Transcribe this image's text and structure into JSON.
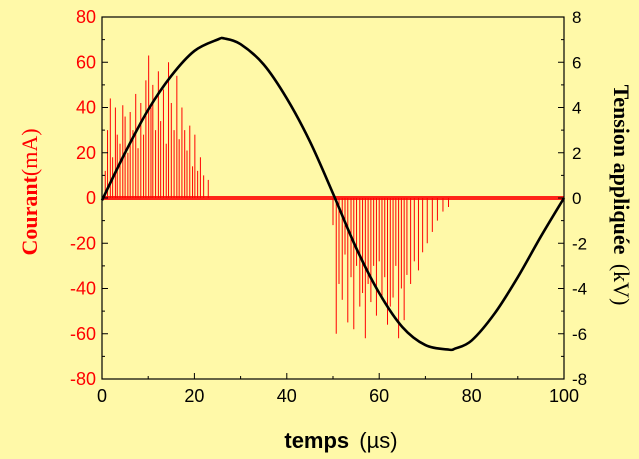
{
  "chart_data": {
    "type": "line",
    "xlabel_bold": "temps",
    "xlabel_unit": "(µs)",
    "ylabel_left_bold": "Courant",
    "ylabel_left_unit": "(mA)",
    "ylabel_right_bold": "Tension appliquée",
    "ylabel_right_unit": "(kV)",
    "xlim": [
      0,
      100
    ],
    "ylim_left": [
      -80,
      80
    ],
    "ylim_right": [
      -8,
      8
    ],
    "x_ticks": [
      "0",
      "20",
      "40",
      "60",
      "80",
      "100"
    ],
    "y_ticks_left": [
      "-80",
      "-60",
      "-40",
      "-20",
      "0",
      "20",
      "40",
      "60",
      "80"
    ],
    "y_ticks_right": [
      "-8",
      "-6",
      "-4",
      "-2",
      "0",
      "2",
      "4",
      "6",
      "8"
    ],
    "grid": false,
    "colors": {
      "background": "#fff9a8",
      "current": "#ff0000",
      "voltage": "#000000",
      "axes": "#000000"
    },
    "series": [
      {
        "axis": "right",
        "x": [
          0,
          5,
          10,
          15,
          20,
          25,
          26.5,
          30,
          35,
          40,
          45,
          50,
          55,
          60,
          65,
          70,
          75,
          76.5,
          80,
          85,
          90,
          95,
          100
        ],
        "y": [
          -0.1,
          2.0,
          3.9,
          5.4,
          6.5,
          7.0,
          7.05,
          6.8,
          5.9,
          4.4,
          2.5,
          0.2,
          -2.2,
          -4.2,
          -5.7,
          -6.5,
          -6.7,
          -6.65,
          -6.3,
          -5.1,
          -3.5,
          -1.7,
          0.0
        ]
      },
      {
        "axis": "left",
        "kind": "discharge-spikes",
        "x": [
          0.7,
          1.2,
          1.8,
          2.3,
          2.9,
          3.3,
          3.9,
          4.5,
          5.0,
          5.6,
          6.1,
          6.7,
          7.3,
          7.8,
          8.4,
          9.0,
          9.5,
          10.1,
          10.6,
          11.0,
          11.6,
          12.2,
          12.7,
          13.3,
          13.9,
          14.4,
          15.0,
          15.6,
          16.2,
          16.7,
          17.3,
          17.9,
          18.4,
          19.0,
          19.6,
          20.1,
          20.7,
          21.3,
          22.0,
          23.0,
          50.0,
          50.7,
          51.3,
          52.0,
          52.6,
          53.2,
          53.9,
          54.5,
          55.1,
          55.8,
          56.4,
          57.0,
          57.6,
          58.2,
          58.8,
          59.4,
          60.0,
          60.6,
          61.2,
          61.8,
          62.4,
          63.0,
          63.6,
          64.2,
          64.8,
          65.4,
          66.0,
          66.8,
          67.6,
          68.5,
          69.4,
          70.4,
          71.5,
          72.6,
          73.8,
          75.0
        ],
        "y": [
          12,
          30,
          44,
          18,
          40,
          28,
          24,
          41,
          36,
          20,
          38,
          30,
          46,
          22,
          42,
          28,
          52,
          63,
          40,
          50,
          30,
          56,
          34,
          48,
          24,
          60,
          42,
          30,
          54,
          26,
          40,
          30,
          21,
          32,
          14,
          28,
          12,
          18,
          10,
          8,
          -12,
          -60,
          -38,
          -45,
          -25,
          -55,
          -35,
          -58,
          -30,
          -48,
          -42,
          -62,
          -38,
          -46,
          -30,
          -52,
          -28,
          -45,
          -35,
          -56,
          -48,
          -44,
          -30,
          -62,
          -40,
          -54,
          -34,
          -38,
          -28,
          -32,
          -24,
          -20,
          -15,
          -10,
          -6,
          -4
        ]
      }
    ]
  }
}
